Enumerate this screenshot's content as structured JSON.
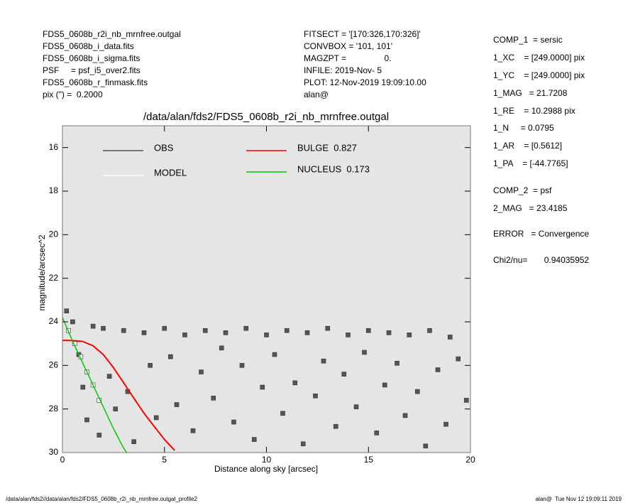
{
  "header": {
    "left": [
      "FDS5_0608b_r2i_nb_mrnfree.outgal",
      "FDS5_0608b_i_data.fits",
      "FDS5_0608b_i_sigma.fits",
      "PSF     = psf_i5_over2.fits",
      "FDS5_0608b_r_finmask.fits",
      "pix (\") =  0.2000"
    ],
    "middle": [
      "FITSECT = '[170:326,170:326]'",
      "CONVBOX = '101, 101'",
      "MAGZPT =                0.",
      "INFILE: 2019-Nov- 5",
      "PLOT: 12-Nov-2019 19:09:10.00",
      "alan@"
    ],
    "right": [
      "COMP_1  = sersic",
      "1_XC    = [249.0000] pix",
      "1_YC    = [249.0000] pix",
      "1_MAG   = 21.7208",
      "1_RE    = 10.2988 pix",
      "1_N     = 0.0795",
      "1_AR    = [0.5612]",
      "1_PA    = [-44.7765]",
      "COMP_2  = psf",
      "2_MAG   = 23.4185",
      "ERROR   = Convergence",
      "Chi2/nu=       0.94035952"
    ]
  },
  "footer": {
    "left": "/data/alan/fds2//data/alan/fds2/FDS5_0608b_r2i_nb_mrnfree.outgal_profile2",
    "right": "alan@  Tue Nov 12 19:09:11 2019"
  },
  "chart_data": {
    "type": "scatter",
    "title": "/data/alan/fds2/FDS5_0608b_r2i_nb_mrnfree.outgal",
    "x_label": "Distance along sky [arcsec]",
    "y_label": "magnitude/arcsec^2",
    "xlim": [
      0,
      20
    ],
    "ylim": [
      30,
      15
    ],
    "xticks": [
      0,
      5,
      10,
      15,
      20
    ],
    "yticks": [
      16,
      18,
      20,
      22,
      24,
      26,
      28,
      30
    ],
    "background": "#e5e5e5",
    "series": [
      {
        "name": "OBS",
        "color": "#555555",
        "style": "square",
        "x": [
          0.2,
          0.5,
          0.8,
          1.0,
          1.2,
          1.5,
          1.8,
          2.0,
          2.3,
          2.6,
          3.0,
          3.2,
          3.5,
          4.0,
          4.3,
          4.6,
          5.0,
          5.3,
          5.6,
          6.0,
          6.4,
          6.8,
          7.0,
          7.4,
          7.8,
          8.0,
          8.4,
          8.8,
          9.0,
          9.4,
          9.8,
          10.0,
          10.4,
          10.8,
          11.0,
          11.4,
          11.8,
          12.0,
          12.4,
          12.8,
          13.0,
          13.4,
          13.8,
          14.0,
          14.4,
          14.8,
          15.0,
          15.4,
          15.8,
          16.0,
          16.4,
          16.8,
          17.0,
          17.4,
          17.8,
          18.0,
          18.4,
          18.8,
          19.0,
          19.4,
          19.8
        ],
        "values": [
          23.5,
          24.0,
          25.5,
          27.0,
          28.5,
          24.2,
          29.2,
          24.3,
          26.5,
          28.0,
          24.4,
          27.2,
          29.5,
          24.5,
          26.0,
          28.4,
          24.3,
          25.6,
          27.8,
          24.6,
          29.0,
          26.3,
          24.4,
          27.5,
          25.2,
          24.5,
          28.6,
          26.0,
          24.3,
          29.4,
          27.0,
          24.6,
          25.5,
          28.2,
          24.4,
          26.8,
          29.6,
          24.5,
          27.4,
          25.8,
          24.3,
          28.8,
          26.4,
          24.6,
          27.9,
          25.4,
          24.4,
          29.1,
          26.9,
          24.5,
          25.9,
          28.3,
          24.6,
          27.2,
          29.7,
          24.4,
          26.2,
          28.7,
          24.7,
          25.7,
          27.6
        ]
      },
      {
        "name": "MODEL",
        "color": "#ffffff",
        "style": "square",
        "x": [
          0.3,
          0.6,
          0.9,
          1.2,
          1.5,
          1.8
        ],
        "values": [
          24.4,
          25.0,
          25.6,
          26.3,
          26.9,
          27.6
        ]
      },
      {
        "name": "BULGE  0.827",
        "color": "#ff0000",
        "style": "line",
        "x": [
          0,
          0.5,
          1,
          1.5,
          2,
          2.5,
          3,
          3.5,
          4,
          4.5,
          5,
          5.5
        ],
        "values": [
          24.85,
          24.86,
          24.9,
          25.1,
          25.5,
          26.1,
          26.8,
          27.5,
          28.2,
          28.8,
          29.4,
          29.9
        ]
      },
      {
        "name": "NUCLEUS  0.173",
        "color": "#00cc00",
        "style": "line",
        "x": [
          0,
          0.5,
          1,
          1.5,
          2,
          2.5,
          3,
          3.15
        ],
        "values": [
          23.8,
          24.9,
          25.9,
          26.9,
          27.9,
          28.9,
          29.8,
          30
        ]
      }
    ]
  }
}
